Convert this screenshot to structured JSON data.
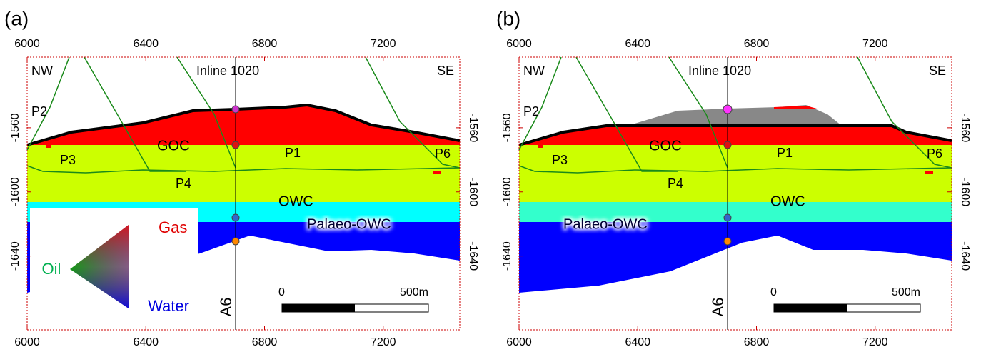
{
  "panels": [
    {
      "label": "(a)",
      "xlim": [
        6000,
        7458
      ],
      "ylim": [
        -1686,
        -1516
      ],
      "xticks": [
        6000,
        6400,
        6800,
        7200
      ],
      "yticks": [
        -1560,
        -1600,
        -1640
      ],
      "texts": {
        "left": "NW",
        "right": "SE",
        "section": "Inline 1020",
        "well": "A6",
        "goc": "GOC",
        "owc": "OWC",
        "palaeo": "Palaeo-OWC",
        "faults": [
          "P2",
          "P3",
          "P1",
          "P4",
          "P6"
        ]
      },
      "scale": [
        "0",
        "500m"
      ],
      "legend": [
        "Gas",
        "Oil",
        "Water"
      ]
    },
    {
      "label": "(b)",
      "xlim": [
        6000,
        7458
      ],
      "ylim": [
        -1686,
        -1516
      ],
      "xticks": [
        6000,
        6400,
        6800,
        7200
      ],
      "yticks": [
        -1560,
        -1600,
        -1640
      ],
      "texts": {
        "left": "NW",
        "right": "SE",
        "section": "Inline 1020",
        "well": "A6",
        "goc": "GOC",
        "owc": "OWC",
        "palaeo": "Palaeo-OWC",
        "faults": [
          "P2",
          "P3",
          "P1",
          "P4",
          "P6"
        ]
      },
      "scale": [
        "0",
        "500m"
      ]
    }
  ]
}
